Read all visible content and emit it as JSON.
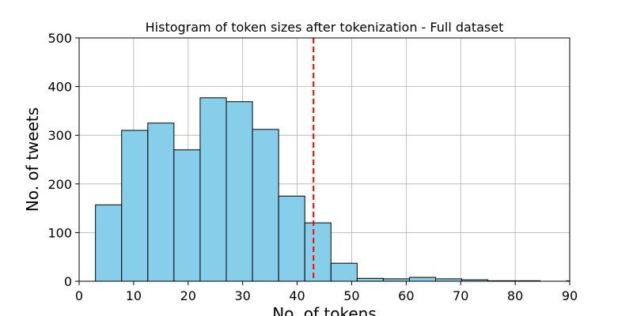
{
  "chart_data": {
    "type": "bar",
    "title": "Histogram of token sizes after tokenization - Full dataset",
    "xlabel": "No. of tokens",
    "ylabel": "No. of tweets",
    "xlim": [
      0,
      90
    ],
    "ylim": [
      0,
      500
    ],
    "xticks": [
      0,
      10,
      20,
      30,
      40,
      50,
      60,
      70,
      80,
      90
    ],
    "yticks": [
      0,
      100,
      200,
      300,
      400,
      500
    ],
    "grid": true,
    "bar_color": "#87CEEB",
    "edge_color": "#000000",
    "reference_line": {
      "x": 43,
      "color": "#FF0000",
      "style": "dashed"
    },
    "bins": [
      {
        "x0": 3.0,
        "x1": 7.8,
        "count": 157
      },
      {
        "x0": 7.8,
        "x1": 12.6,
        "count": 310
      },
      {
        "x0": 12.6,
        "x1": 17.4,
        "count": 325
      },
      {
        "x0": 17.4,
        "x1": 22.2,
        "count": 270
      },
      {
        "x0": 22.2,
        "x1": 27.0,
        "count": 377
      },
      {
        "x0": 27.0,
        "x1": 31.8,
        "count": 369
      },
      {
        "x0": 31.8,
        "x1": 36.6,
        "count": 312
      },
      {
        "x0": 36.6,
        "x1": 41.4,
        "count": 175
      },
      {
        "x0": 41.4,
        "x1": 46.2,
        "count": 120
      },
      {
        "x0": 46.2,
        "x1": 51.0,
        "count": 37
      },
      {
        "x0": 51.0,
        "x1": 55.8,
        "count": 6
      },
      {
        "x0": 55.8,
        "x1": 60.6,
        "count": 5
      },
      {
        "x0": 60.6,
        "x1": 65.4,
        "count": 8
      },
      {
        "x0": 65.4,
        "x1": 70.2,
        "count": 5
      },
      {
        "x0": 70.2,
        "x1": 75.0,
        "count": 3
      },
      {
        "x0": 75.0,
        "x1": 79.8,
        "count": 1
      },
      {
        "x0": 79.8,
        "x1": 84.6,
        "count": 1
      },
      {
        "x0": 84.6,
        "x1": 89.4,
        "count": 0
      },
      {
        "x0": 89.4,
        "x1": 94.2,
        "count": 1
      }
    ]
  }
}
